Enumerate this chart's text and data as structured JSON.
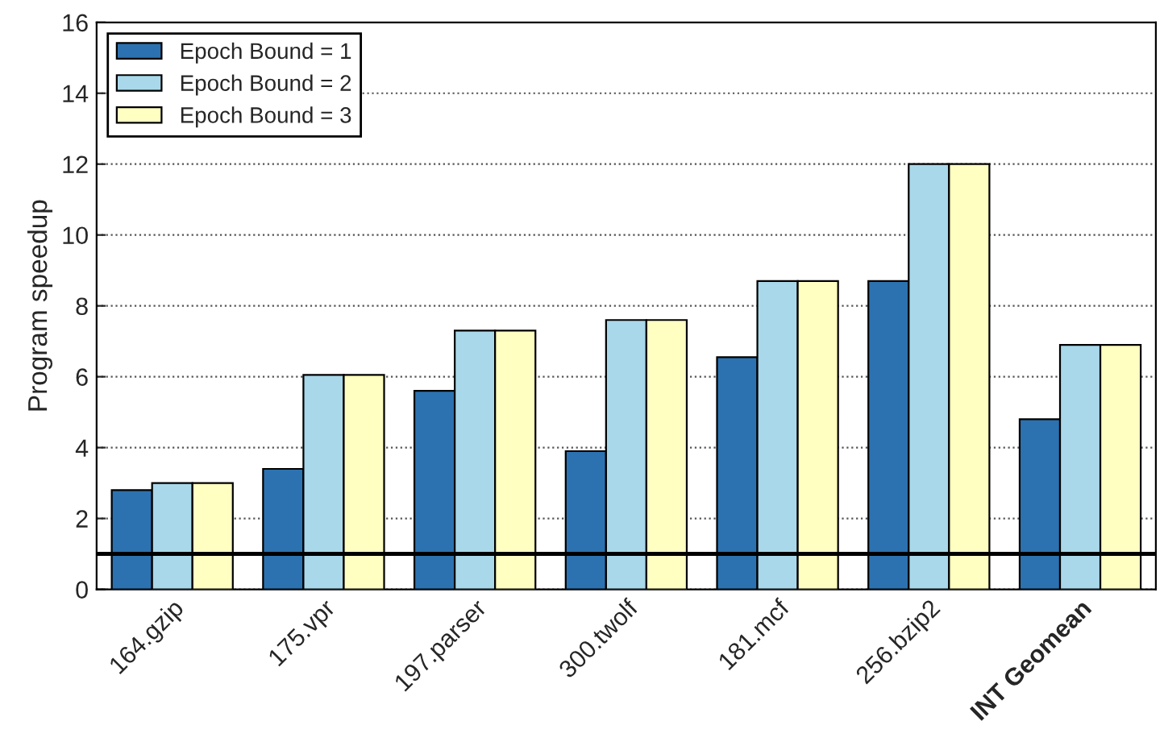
{
  "chart_data": {
    "type": "bar",
    "ylabel": "Program speedup",
    "categories": [
      "164.gzip",
      "175.vpr",
      "197.parser",
      "300.twolf",
      "181.mcf",
      "256.bzip2",
      "INT Geomean"
    ],
    "series": [
      {
        "name": "Epoch Bound = 1",
        "color": "#2c72b0",
        "values": [
          2.8,
          3.4,
          5.6,
          3.9,
          6.55,
          8.7,
          4.8
        ]
      },
      {
        "name": "Epoch Bound = 2",
        "color": "#a9d8ea",
        "values": [
          3.0,
          6.05,
          7.3,
          7.6,
          8.7,
          12.0,
          6.9
        ]
      },
      {
        "name": "Epoch Bound = 3",
        "color": "#ffffc2",
        "values": [
          3.0,
          6.05,
          7.3,
          7.6,
          8.7,
          12.0,
          6.9
        ]
      }
    ],
    "ylim": [
      0,
      16
    ],
    "yticks": [
      0,
      2,
      4,
      6,
      8,
      10,
      12,
      14,
      16
    ],
    "grid": "y",
    "legend": "top left",
    "ref_lines": [
      {
        "axis": "y",
        "value": 1,
        "color": "#000000",
        "line_style": "solid"
      }
    ]
  }
}
